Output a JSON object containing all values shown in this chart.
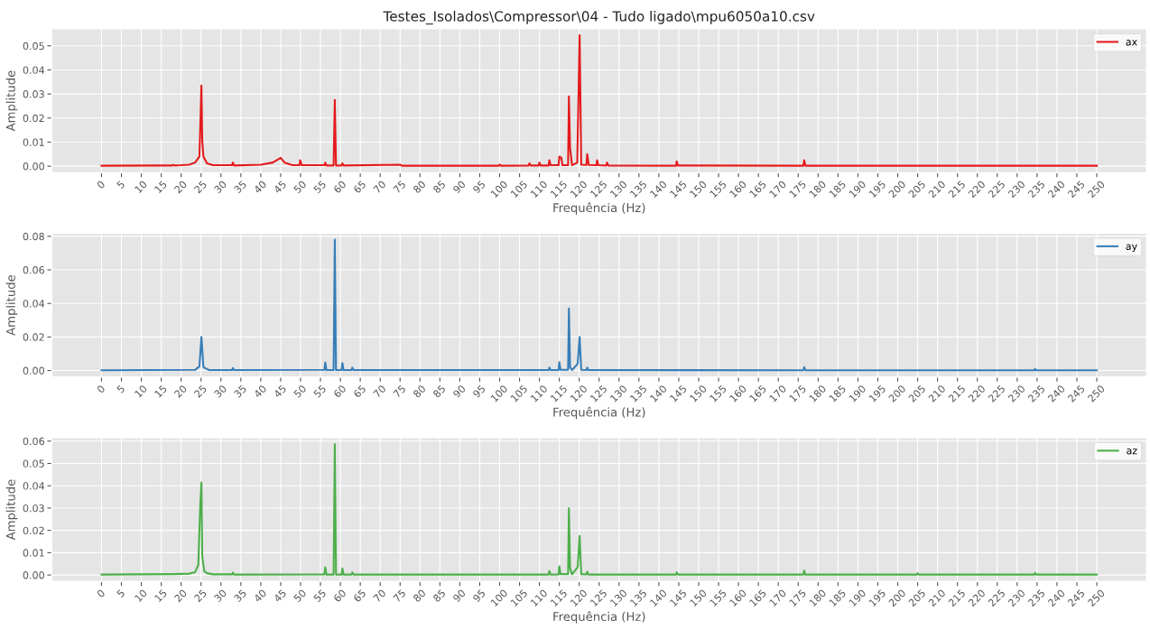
{
  "chart_data": [
    {
      "type": "line",
      "title": "Testes_Isolados\\Compressor\\04 - Tudo ligado\\mpu6050a10.csv",
      "xlabel": "Frequência (Hz)",
      "ylabel": "Amplitude",
      "grid": true,
      "legend": "top right",
      "xlim": [
        -12.5,
        262.5
      ],
      "xticks": [
        0,
        5,
        10,
        15,
        20,
        25,
        30,
        35,
        40,
        45,
        50,
        55,
        60,
        65,
        70,
        75,
        80,
        85,
        90,
        95,
        100,
        105,
        110,
        115,
        120,
        125,
        130,
        135,
        140,
        145,
        150,
        155,
        160,
        165,
        170,
        175,
        180,
        185,
        190,
        195,
        200,
        205,
        210,
        215,
        220,
        225,
        230,
        235,
        240,
        245,
        250
      ],
      "ylim": [
        -0.0027,
        0.0571
      ],
      "yticks": [
        {
          "value": 0,
          "label": "0.00"
        },
        {
          "value": 0.01,
          "label": "0.01"
        },
        {
          "value": 0.02,
          "label": "0.02"
        },
        {
          "value": 0.03,
          "label": "0.03"
        },
        {
          "value": 0.04,
          "label": "0.04"
        },
        {
          "value": 0.05,
          "label": "0.05"
        }
      ],
      "series": [
        {
          "name": "ax",
          "color": "#e41a1c",
          "x": [
            0,
            15,
            17.8,
            18,
            18.3,
            20,
            22,
            23.5,
            24.6,
            25.1,
            25.3,
            25.6,
            26.5,
            28,
            32.8,
            33,
            33.3,
            40,
            43,
            45,
            46,
            48,
            49.7,
            49.9,
            50.3,
            56,
            56.2,
            56.5,
            58.3,
            58.6,
            58.9,
            60.3,
            60.5,
            60.8,
            75,
            75.5,
            99.8,
            100,
            100.3,
            107.3,
            107.5,
            107.8,
            109.8,
            110,
            110.3,
            112.3,
            112.5,
            112.8,
            114.8,
            115,
            115.5,
            115.8,
            117.2,
            117.4,
            117.7,
            118.2,
            119.5,
            120.1,
            120.5,
            121.8,
            122,
            122.4,
            124.3,
            124.5,
            124.8,
            126.8,
            127,
            127.3,
            144.3,
            144.5,
            144.8,
            176.3,
            176.5,
            176.8,
            250
          ],
          "values": [
            0.0002,
            0.0003,
            0.0003,
            0.0006,
            0.0003,
            0.0004,
            0.0006,
            0.0015,
            0.004,
            0.0335,
            0.0105,
            0.004,
            0.0012,
            0.0004,
            0.0004,
            0.0015,
            0.0003,
            0.0006,
            0.0015,
            0.0035,
            0.0015,
            0.0004,
            0.0004,
            0.0025,
            0.0004,
            0.0004,
            0.0015,
            0.0003,
            0.0003,
            0.0275,
            0.0003,
            0.0003,
            0.0012,
            0.0003,
            0.0006,
            0.0002,
            0.0002,
            0.0007,
            0.0002,
            0.0003,
            0.0012,
            0.0003,
            0.0003,
            0.0015,
            0.0003,
            0.0003,
            0.0025,
            0.0004,
            0.0004,
            0.004,
            0.0035,
            0.0004,
            0.0004,
            0.029,
            0.0075,
            0.0004,
            0.0015,
            0.0544,
            0.0006,
            0.0005,
            0.005,
            0.0005,
            0.0004,
            0.0025,
            0.0004,
            0.0003,
            0.0015,
            0.0003,
            0.0002,
            0.002,
            0.0003,
            0.0002,
            0.0025,
            0.0002,
            0.0002
          ]
        }
      ]
    },
    {
      "type": "line",
      "xlabel": "Frequência (Hz)",
      "ylabel": "Amplitude",
      "grid": true,
      "legend": "top right",
      "xlim": [
        -12.5,
        262.5
      ],
      "xticks": [
        0,
        5,
        10,
        15,
        20,
        25,
        30,
        35,
        40,
        45,
        50,
        55,
        60,
        65,
        70,
        75,
        80,
        85,
        90,
        95,
        100,
        105,
        110,
        115,
        120,
        125,
        130,
        135,
        140,
        145,
        150,
        155,
        160,
        165,
        170,
        175,
        180,
        185,
        190,
        195,
        200,
        205,
        210,
        215,
        220,
        225,
        230,
        235,
        240,
        245,
        250
      ],
      "ylim": [
        -0.0039,
        0.0819
      ],
      "yticks": [
        {
          "value": 0,
          "label": "0.00"
        },
        {
          "value": 0.02,
          "label": "0.02"
        },
        {
          "value": 0.04,
          "label": "0.04"
        },
        {
          "value": 0.06,
          "label": "0.06"
        },
        {
          "value": 0.08,
          "label": "0.08"
        }
      ],
      "series": [
        {
          "name": "ay",
          "color": "#377eb8",
          "x": [
            0,
            23.5,
            24.6,
            25.1,
            25.6,
            27,
            32.8,
            33,
            33.3,
            56,
            56.2,
            56.5,
            58.3,
            58.6,
            58.9,
            60.3,
            60.5,
            60.8,
            62.8,
            63,
            63.3,
            112.3,
            112.5,
            112.8,
            114.8,
            115,
            115.3,
            117.2,
            117.4,
            117.7,
            118.2,
            119.6,
            120.1,
            120.5,
            121.8,
            122,
            122.3,
            176.3,
            176.5,
            176.8,
            234.3,
            234.5,
            234.8,
            250
          ],
          "values": [
            0.0002,
            0.0004,
            0.0025,
            0.02,
            0.002,
            0.0003,
            0.0003,
            0.0015,
            0.0003,
            0.0004,
            0.0048,
            0.0003,
            0.0003,
            0.078,
            0.0003,
            0.0003,
            0.0045,
            0.0003,
            0.0003,
            0.0018,
            0.0003,
            0.0003,
            0.0018,
            0.0003,
            0.0003,
            0.005,
            0.0004,
            0.0004,
            0.037,
            0.002,
            0.0003,
            0.004,
            0.02,
            0.0004,
            0.0003,
            0.0018,
            0.0003,
            0.0002,
            0.002,
            0.0002,
            0.0002,
            0.001,
            0.0002,
            0.0002
          ]
        }
      ]
    },
    {
      "type": "line",
      "xlabel": "Frequência (Hz)",
      "ylabel": "Amplitude",
      "grid": true,
      "legend": "top right",
      "xlim": [
        -12.5,
        262.5
      ],
      "xticks": [
        0,
        5,
        10,
        15,
        20,
        25,
        30,
        35,
        40,
        45,
        50,
        55,
        60,
        65,
        70,
        75,
        80,
        85,
        90,
        95,
        100,
        105,
        110,
        115,
        120,
        125,
        130,
        135,
        140,
        145,
        150,
        155,
        160,
        165,
        170,
        175,
        180,
        185,
        190,
        195,
        200,
        205,
        210,
        215,
        220,
        225,
        230,
        235,
        240,
        245,
        250
      ],
      "ylim": [
        -0.0029,
        0.0616
      ],
      "yticks": [
        {
          "value": 0,
          "label": "0.00"
        },
        {
          "value": 0.01,
          "label": "0.01"
        },
        {
          "value": 0.02,
          "label": "0.02"
        },
        {
          "value": 0.03,
          "label": "0.03"
        },
        {
          "value": 0.04,
          "label": "0.04"
        },
        {
          "value": 0.05,
          "label": "0.05"
        },
        {
          "value": 0.06,
          "label": "0.06"
        }
      ],
      "series": [
        {
          "name": "az",
          "color": "#4daf4a",
          "x": [
            0,
            18,
            22,
            23.5,
            24.3,
            24.8,
            25.1,
            25.3,
            25.8,
            26.5,
            28,
            32.8,
            33,
            33.3,
            56,
            56.2,
            56.5,
            58.3,
            58.6,
            58.9,
            60.3,
            60.5,
            60.8,
            62.8,
            63,
            63.3,
            112.3,
            112.5,
            112.8,
            114.8,
            115,
            115.3,
            117.2,
            117.4,
            117.7,
            118.2,
            119.6,
            120.1,
            120.5,
            121.8,
            122,
            122.3,
            144.3,
            144.5,
            144.8,
            176.3,
            176.5,
            176.8,
            204.8,
            205,
            205.3,
            234.3,
            234.5,
            234.8,
            250
          ],
          "values": [
            0.0002,
            0.0004,
            0.0006,
            0.0013,
            0.0045,
            0.031,
            0.0415,
            0.0085,
            0.0018,
            0.0008,
            0.0003,
            0.0003,
            0.0011,
            0.0002,
            0.0003,
            0.0035,
            0.0002,
            0.0002,
            0.0587,
            0.0002,
            0.0002,
            0.003,
            0.0002,
            0.0002,
            0.0012,
            0.0002,
            0.0002,
            0.0018,
            0.0002,
            0.0003,
            0.0039,
            0.0004,
            0.0004,
            0.03,
            0.003,
            0.0003,
            0.0035,
            0.0175,
            0.0004,
            0.0003,
            0.0015,
            0.0002,
            0.0002,
            0.0012,
            0.0002,
            0.0002,
            0.002,
            0.0002,
            0.0002,
            0.0008,
            0.0002,
            0.0002,
            0.001,
            0.0002,
            0.0002
          ]
        }
      ]
    }
  ]
}
